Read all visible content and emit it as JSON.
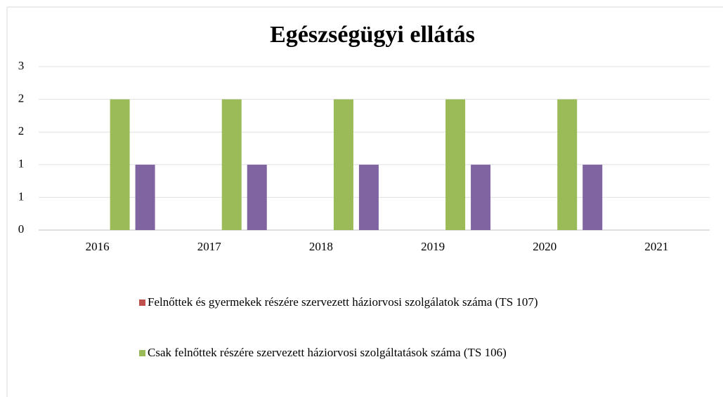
{
  "chart_data": {
    "type": "bar",
    "title": "Egészségügyi ellátás",
    "categories": [
      "2016",
      "2017",
      "2018",
      "2019",
      "2020",
      "2021"
    ],
    "series": [
      {
        "name": "Felnőttek és gyermekek részére szervezett háziorvosi szolgálatok száma (TS 107)",
        "color": "#c0504d",
        "values": [
          0,
          0,
          0,
          0,
          0,
          0
        ]
      },
      {
        "name": "Csak felnőttek részére szervezett háziorvosi szolgáltatások száma (TS 106)",
        "color": "#9bbb59",
        "values": [
          2,
          2,
          2,
          2,
          2,
          0
        ]
      },
      {
        "color": "#8064a2",
        "values": [
          1,
          1,
          1,
          1,
          1,
          0
        ]
      }
    ],
    "ylim": [
      0,
      2.5
    ],
    "yticks": [
      0,
      {
        "value": 0.5,
        "label": "1"
      },
      1,
      {
        "value": 1.5,
        "label": "2"
      },
      2,
      {
        "value": 2.5,
        "label": "3"
      }
    ],
    "grid": true
  }
}
